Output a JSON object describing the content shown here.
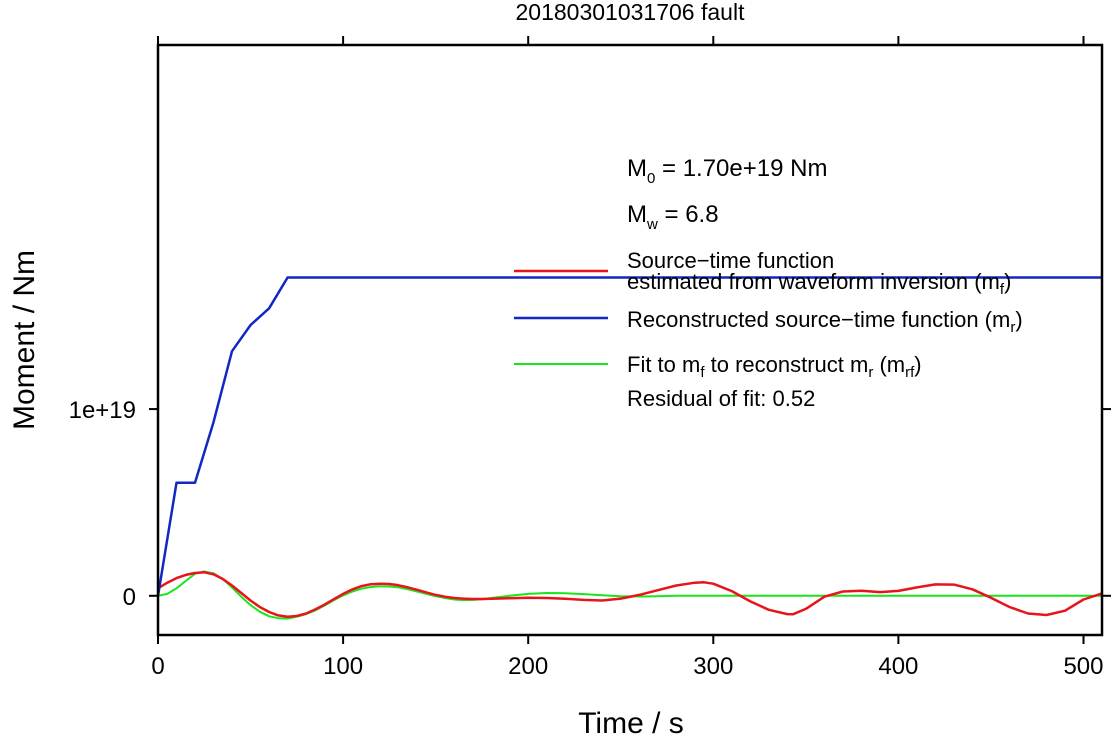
{
  "chart_data": {
    "type": "line",
    "title": "20180301031706 fault",
    "xlabel": "Time / s",
    "ylabel": "Moment / Nm",
    "xlim": [
      0,
      510
    ],
    "ylim": [
      -2.1e+18,
      2.95e+19
    ],
    "x_ticks": [
      0,
      100,
      200,
      300,
      400,
      500
    ],
    "x_tick_labels": [
      "0",
      "100",
      "200",
      "300",
      "400",
      "500"
    ],
    "y_ticks": [
      0,
      1e+19
    ],
    "y_tick_labels": [
      "0",
      "1e+19"
    ],
    "annotations": {
      "m0": {
        "main": "M",
        "sub": "0",
        "rest": " = 1.70e+19 Nm"
      },
      "mw": {
        "main": "M",
        "sub": "w",
        "rest": " = 6.8"
      },
      "residual": "Residual of fit: 0.52"
    },
    "legend": {
      "placement": "right",
      "entries": [
        {
          "series": 0,
          "line1": "Source−time function",
          "line2": "estimated from waveform inversion (m",
          "sub": "f",
          "tail": ")"
        },
        {
          "series": 1,
          "text": "Reconstructed source−time function (m",
          "sub": "r",
          "tail": ")"
        },
        {
          "series": 2,
          "p1": "Fit to m",
          "s1": "f",
          "p2": " to reconstruct m",
          "s2": "r",
          "p3": " (m",
          "s3": "rf",
          "p4": ")"
        }
      ]
    },
    "series": [
      {
        "color": "#e8141b",
        "x": [
          0,
          5,
          10,
          15,
          20,
          25,
          30,
          35,
          40,
          45,
          50,
          55,
          60,
          65,
          70,
          75,
          80,
          85,
          90,
          95,
          100,
          105,
          110,
          115,
          120,
          125,
          130,
          135,
          140,
          145,
          150,
          155,
          160,
          165,
          170,
          175,
          180,
          190,
          200,
          210,
          220,
          230,
          240,
          250,
          260,
          270,
          280,
          290,
          295,
          300,
          310,
          320,
          330,
          340,
          343,
          350,
          360,
          370,
          380,
          390,
          400,
          410,
          420,
          430,
          440,
          450,
          460,
          470,
          480,
          490,
          500,
          510
        ],
        "y": [
          4e+17,
          7e+17,
          9.5e+17,
          1.12e+18,
          1.22e+18,
          1.26e+18,
          1.15e+18,
          9e+17,
          5.5e+17,
          1.5e+17,
          -2.5e+17,
          -6e+17,
          -8.7e+17,
          -1.05e+18,
          -1.12e+18,
          -1.08e+18,
          -9.5e+17,
          -7.3e+17,
          -4.7e+17,
          -1.8e+17,
          1e+17,
          3.4e+17,
          5.2e+17,
          6.2e+17,
          6.5e+17,
          6.3e+17,
          5.6e+17,
          4.5e+17,
          3.2e+17,
          1.8e+17,
          5e+16,
          -5e+16,
          -1.2e+17,
          -1.5e+17,
          -1.7e+17,
          -1.7e+17,
          -1.6e+17,
          -1.3e+17,
          -1e+17,
          -1.2e+17,
          -1.6e+17,
          -2.2e+17,
          -2.5e+17,
          -1.5e+17,
          5e+16,
          3e+17,
          5.5e+17,
          7e+17,
          7.2e+17,
          6.5e+17,
          2.5e+17,
          -3e+17,
          -7.5e+17,
          -9.8e+17,
          -9.9e+17,
          -7e+17,
          -5e+16,
          2.3e+17,
          2.7e+17,
          2e+17,
          2.6e+17,
          4.5e+17,
          6.1e+17,
          6e+17,
          3.5e+17,
          -1e+17,
          -6e+17,
          -9.5e+17,
          -1.03e+18,
          -8e+17,
          -2e+17,
          1.3e+17
        ]
      },
      {
        "color": "#1327c3",
        "x": [
          0,
          10,
          20,
          30,
          40,
          50,
          60,
          70,
          510
        ],
        "y": [
          0,
          6.05e+18,
          6.05e+18,
          9.3e+18,
          1.31e+19,
          1.45e+19,
          1.54e+19,
          1.705e+19,
          1.705e+19
        ]
      },
      {
        "color": "#1be41b",
        "x": [
          0,
          5,
          10,
          15,
          20,
          25,
          30,
          35,
          40,
          45,
          50,
          55,
          60,
          65,
          70,
          75,
          80,
          85,
          90,
          95,
          100,
          105,
          110,
          115,
          120,
          125,
          130,
          135,
          140,
          145,
          150,
          155,
          160,
          165,
          170,
          175,
          180,
          190,
          200,
          210,
          220,
          230,
          240,
          250,
          260,
          270,
          280,
          300,
          350,
          400,
          450,
          510
        ],
        "y": [
          0,
          1e+17,
          4e+17,
          8e+17,
          1.18e+18,
          1.3e+18,
          1.2e+18,
          9e+17,
          4.5e+17,
          -5e+16,
          -5e+17,
          -8.5e+17,
          -1.1e+18,
          -1.2e+18,
          -1.22e+18,
          -1.12e+18,
          -9.8e+17,
          -7.8e+17,
          -5.2e+17,
          -2.4e+17,
          2e+16,
          2.3e+17,
          3.8e+17,
          4.7e+17,
          5.1e+17,
          5e+17,
          4.5e+17,
          3.5e+17,
          2.3e+17,
          1e+17,
          -2e+16,
          -1.2e+17,
          -2e+17,
          -2.3e+17,
          -2.2e+17,
          -1.8e+17,
          -1.2e+17,
          0,
          1e+17,
          1.5e+17,
          1.4e+17,
          9e+16,
          3e+16,
          -2e+16,
          -4e+16,
          -2e+16,
          0,
          0,
          0,
          0,
          0,
          0
        ]
      }
    ]
  }
}
